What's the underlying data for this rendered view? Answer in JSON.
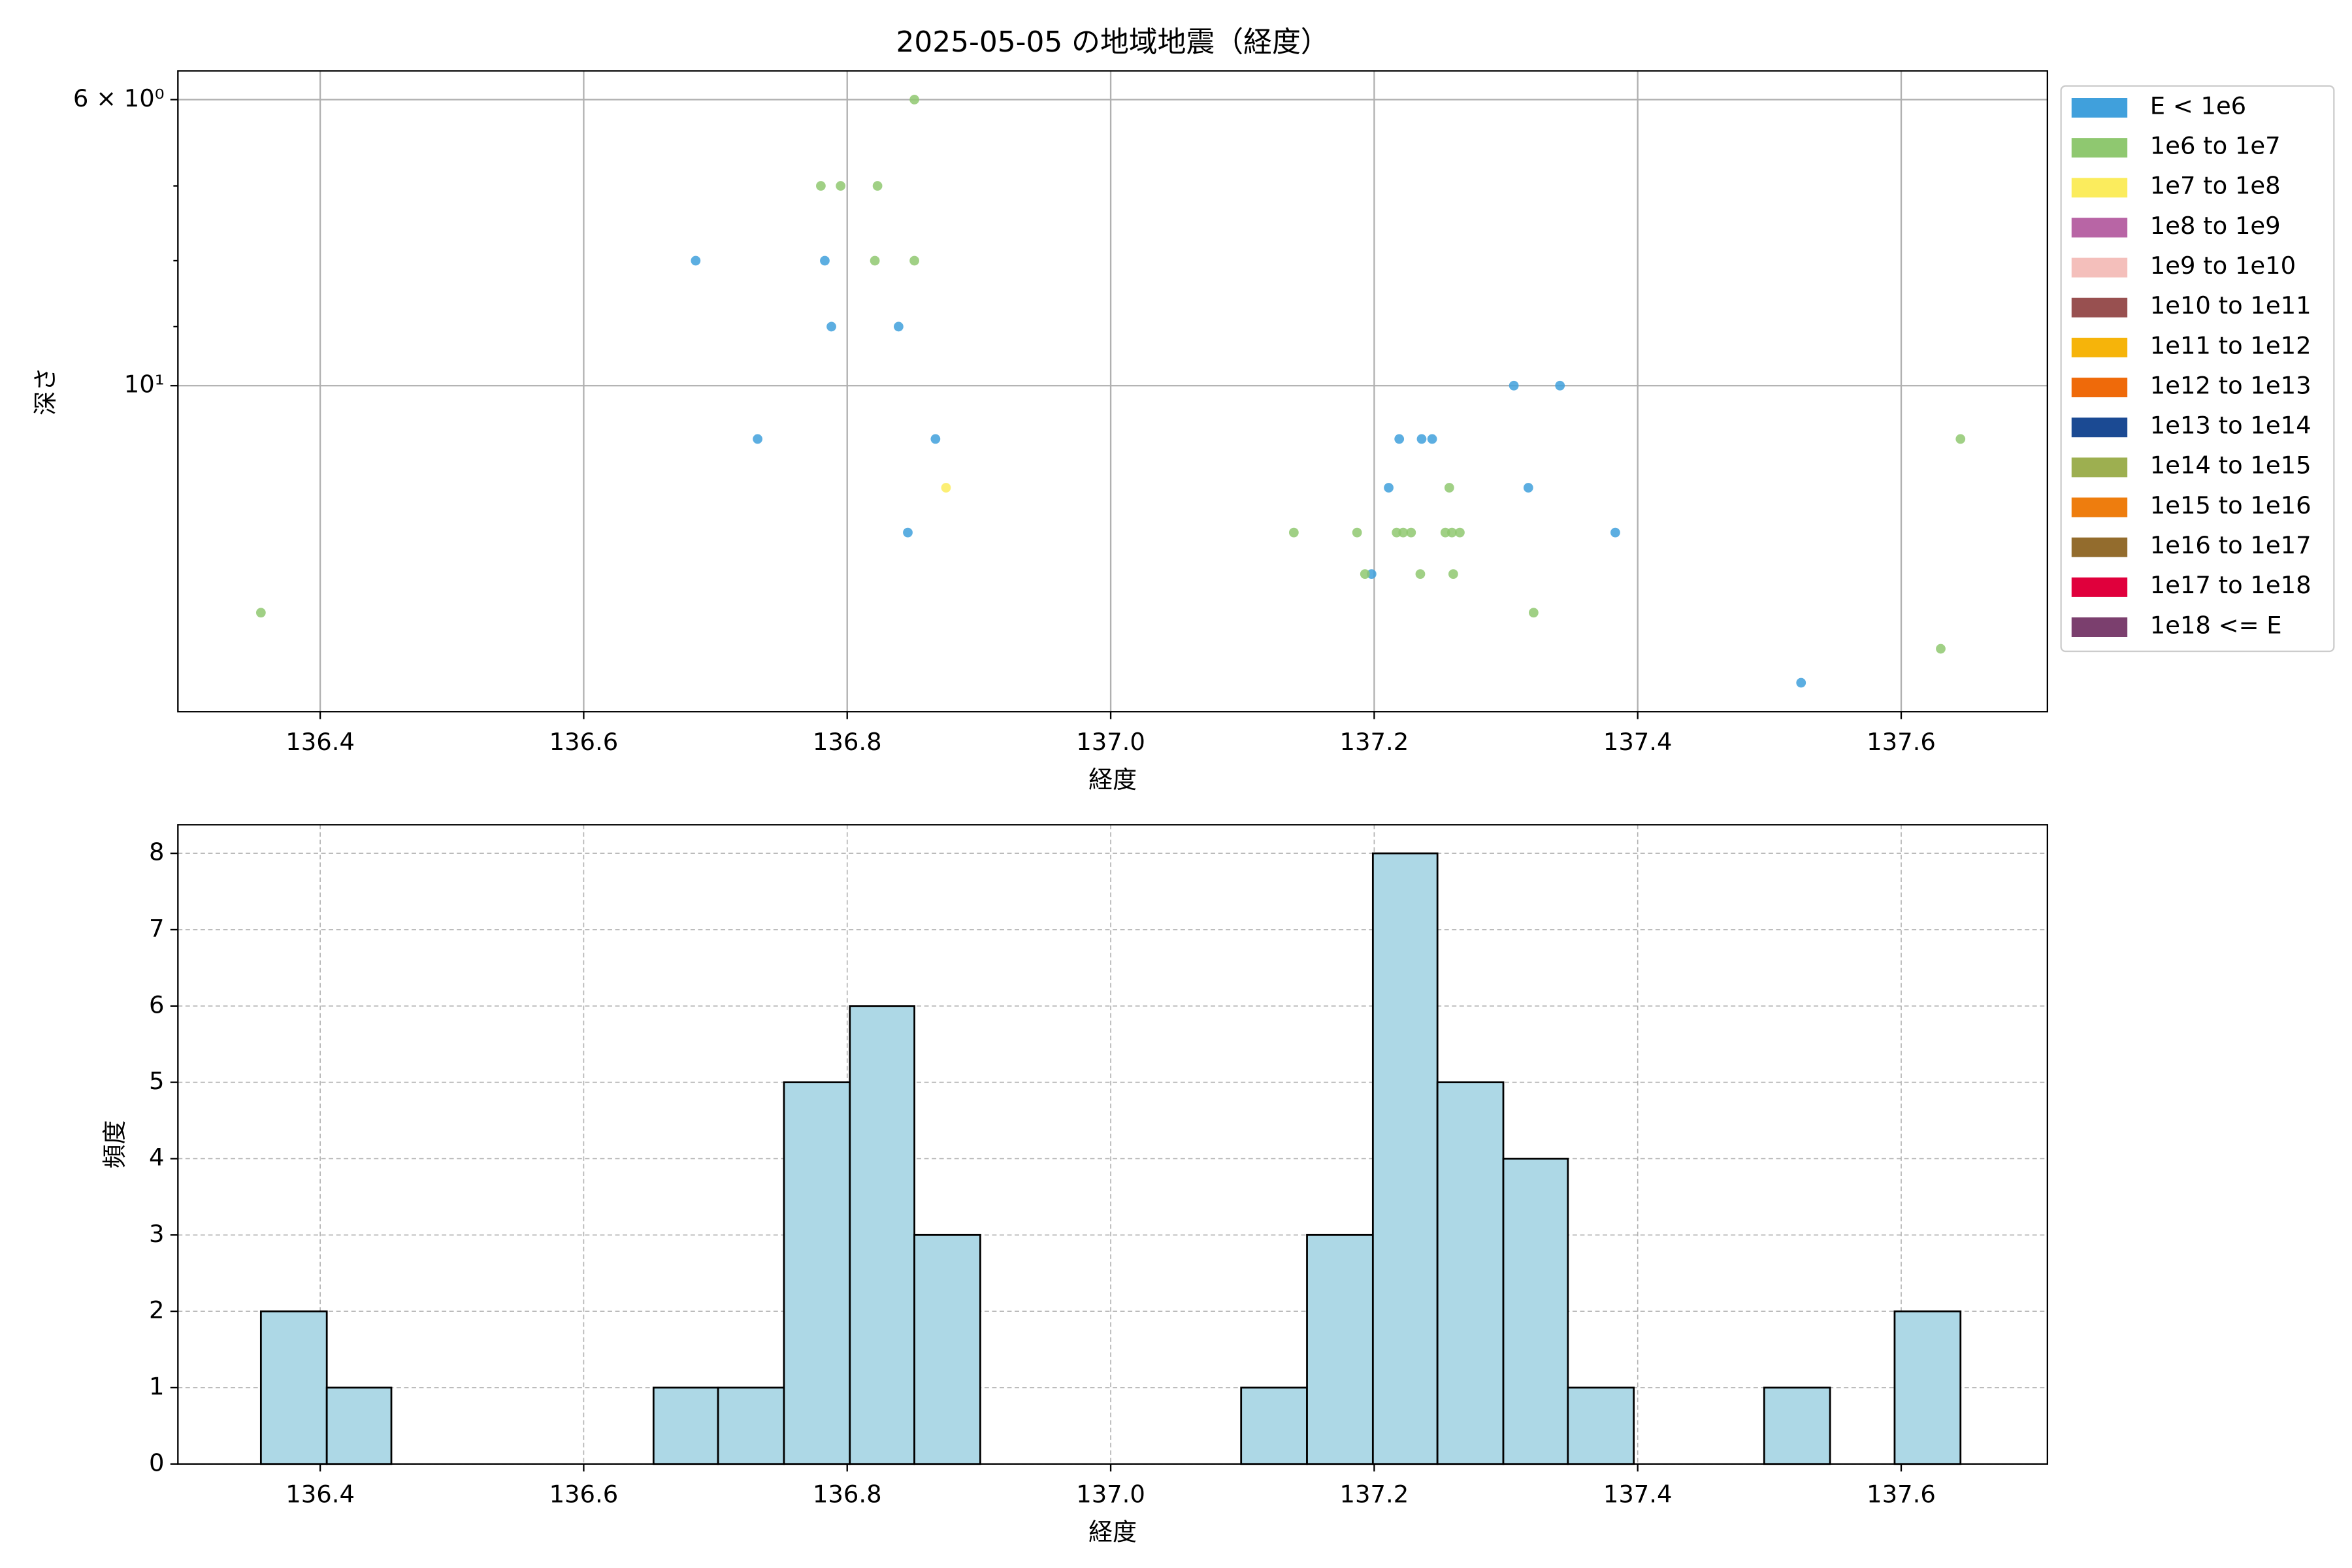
{
  "chart_data": [
    {
      "type": "scatter",
      "title": "2025-05-05 の地域地震（経度）",
      "xlabel": "経度",
      "ylabel": "深さ",
      "xlim": [
        136.292,
        137.711
      ],
      "xticks": [
        136.4,
        136.6,
        136.8,
        {
          "value": 137,
          "label": "137.0"
        },
        137.2,
        137.4,
        137.6
      ],
      "ylim": [
        5.7,
        17.9
      ],
      "yscale": "log",
      "yinverted": true,
      "yticks": [
        {
          "value": 6,
          "label": "6 × 10⁰"
        },
        {
          "value": 10,
          "label": "10¹"
        }
      ],
      "yminorticks": [
        7,
        8,
        9
      ],
      "grid": true,
      "grid_style": "solid",
      "legend": "outside-right",
      "series": [
        {
          "name": "E < 1e6",
          "color": "#40a0dc",
          "x": [
            136.685,
            136.783,
            136.788,
            136.839,
            136.732,
            136.867,
            136.846,
            137.306,
            137.341,
            137.219,
            137.236,
            137.244,
            137.211,
            137.317,
            137.383,
            137.198,
            137.524
          ],
          "y": [
            8,
            8,
            9,
            9,
            11,
            11,
            13,
            10,
            10,
            11,
            11,
            11,
            12,
            12,
            13,
            14,
            17
          ]
        },
        {
          "name": "1e6 to 1e7",
          "color": "#8fc870",
          "x": [
            136.851,
            136.78,
            136.795,
            136.823,
            136.821,
            136.851,
            136.355,
            137.139,
            137.187,
            137.217,
            137.222,
            137.228,
            137.254,
            137.259,
            137.265,
            137.257,
            137.193,
            137.235,
            137.26,
            137.321,
            137.645,
            137.63
          ],
          "y": [
            6,
            7,
            7,
            7,
            8,
            8,
            15,
            13,
            13,
            13,
            13,
            13,
            13,
            13,
            13,
            12,
            14,
            14,
            14,
            15,
            11,
            16
          ]
        },
        {
          "name": "1e7 to 1e8",
          "color": "#fbec5d",
          "x": [
            136.875
          ],
          "y": [
            12
          ]
        },
        {
          "name": "1e8 to 1e9",
          "color": "#b865a5",
          "x": [],
          "y": []
        },
        {
          "name": "1e9 to 1e10",
          "color": "#f4bfbb",
          "x": [],
          "y": []
        },
        {
          "name": "1e10 to 1e11",
          "color": "#985050",
          "x": [],
          "y": []
        },
        {
          "name": "1e11 to 1e12",
          "color": "#f6b40a",
          "x": [],
          "y": []
        },
        {
          "name": "1e12 to 1e13",
          "color": "#ef6a0a",
          "x": [],
          "y": []
        },
        {
          "name": "1e13 to 1e14",
          "color": "#1b4a93",
          "x": [],
          "y": []
        },
        {
          "name": "1e14 to 1e15",
          "color": "#9daf50",
          "x": [],
          "y": []
        },
        {
          "name": "1e15 to 1e16",
          "color": "#ee7d0e",
          "x": [],
          "y": []
        },
        {
          "name": "1e16 to 1e17",
          "color": "#936c2d",
          "x": [],
          "y": []
        },
        {
          "name": "1e17 to 1e18",
          "color": "#e0003c",
          "x": [],
          "y": []
        },
        {
          "name": "1e18 <= E",
          "color": "#7b3f6e",
          "x": [],
          "y": []
        }
      ]
    },
    {
      "type": "histogram",
      "xlabel": "経度",
      "ylabel": "頻度",
      "xlim": [
        136.292,
        137.711
      ],
      "xticks": [
        136.4,
        136.6,
        136.8,
        {
          "value": 137,
          "label": "137.0"
        },
        137.2,
        137.4,
        137.6
      ],
      "ylim": [
        0,
        8.375
      ],
      "yticks": [
        0,
        1,
        2,
        3,
        4,
        5,
        6,
        7,
        8
      ],
      "grid": true,
      "grid_style": "dashed",
      "color": "#add8e6",
      "edgecolor": "#000000",
      "bins": [
        136.355,
        136.405,
        136.454,
        136.504,
        136.553,
        136.603,
        136.653,
        136.702,
        136.752,
        136.802,
        136.851,
        136.901,
        136.951,
        137.0,
        137.05,
        137.099,
        137.149,
        137.199,
        137.248,
        137.298,
        137.347,
        137.397,
        137.447,
        137.496,
        137.546,
        137.595,
        137.645
      ],
      "counts": [
        2,
        1,
        0,
        0,
        0,
        0,
        1,
        1,
        5,
        6,
        3,
        0,
        0,
        0,
        0,
        1,
        3,
        8,
        5,
        4,
        1,
        0,
        0,
        1,
        0,
        2
      ]
    }
  ]
}
